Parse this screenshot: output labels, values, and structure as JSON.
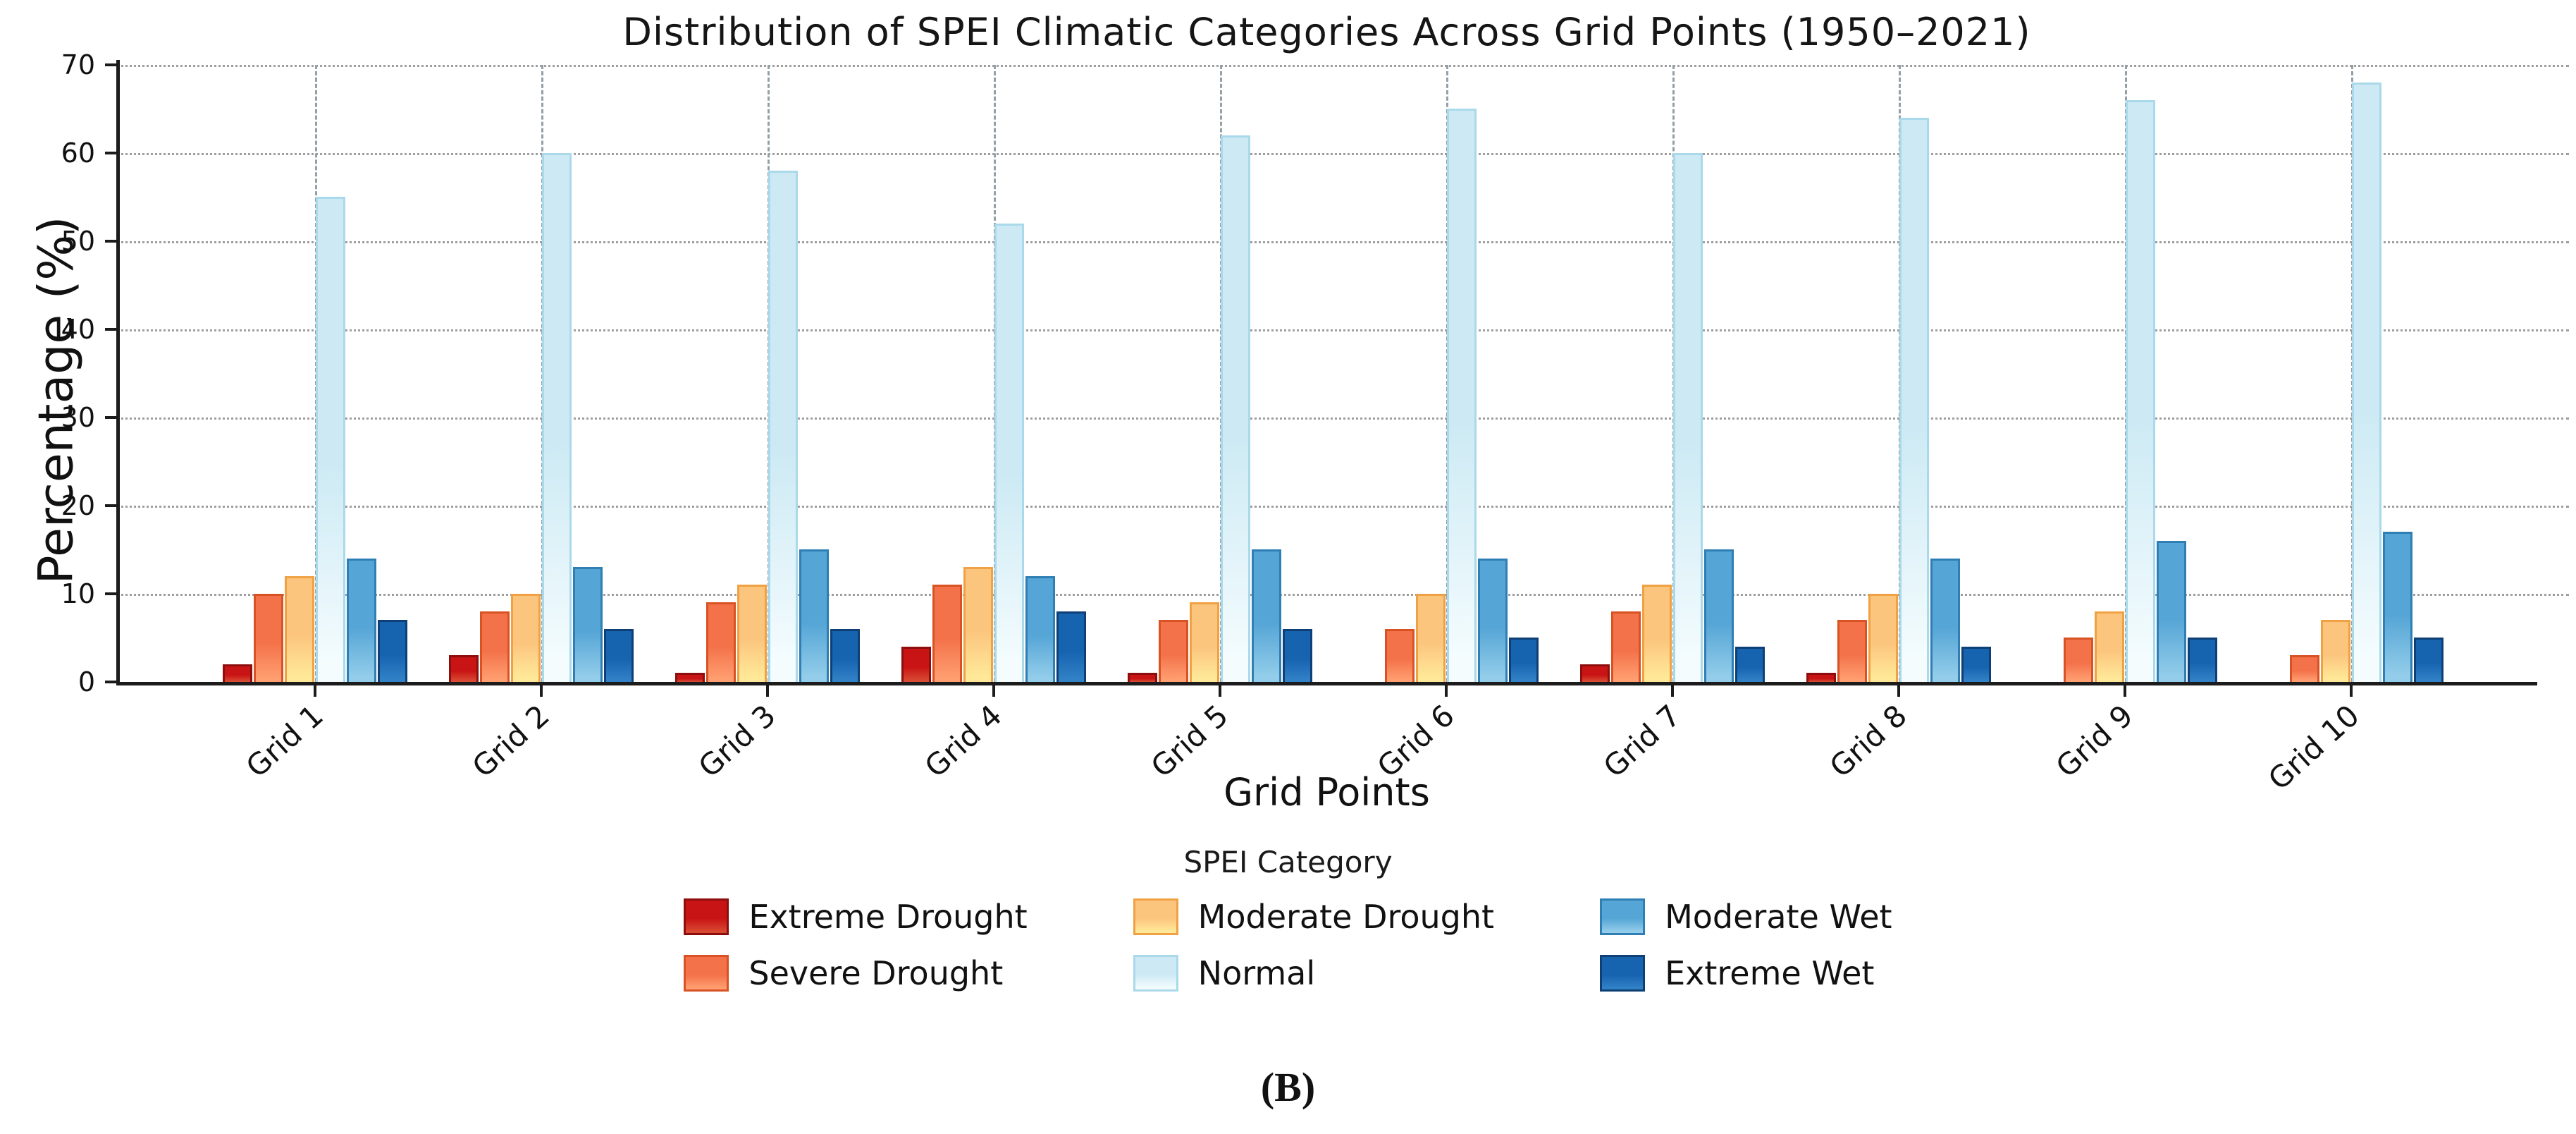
{
  "figure": {
    "caption": "(B)"
  },
  "chart_data": {
    "type": "bar",
    "title": "Distribution of SPEI Climatic Categories Across Grid Points (1950–2021)",
    "xlabel": "Grid Points",
    "ylabel": "Percentage (%)",
    "ylim": [
      0,
      70
    ],
    "yticks": [
      0,
      10,
      20,
      30,
      40,
      50,
      60,
      70
    ],
    "grid": "both",
    "legend_title": "SPEI Category",
    "legend_position": "bottom",
    "categories": [
      "Grid 1",
      "Grid 2",
      "Grid 3",
      "Grid 4",
      "Grid 5",
      "Grid 6",
      "Grid 7",
      "Grid 8",
      "Grid 9",
      "Grid 10"
    ],
    "series": [
      {
        "name": "Extreme Drought",
        "color": "#c81414",
        "edge": "#8e0e0e",
        "light": "#d84a32",
        "values": [
          2,
          3,
          1,
          4,
          1,
          0,
          2,
          1,
          0,
          0
        ]
      },
      {
        "name": "Severe Drought",
        "color": "#f4724a",
        "edge": "#d85224",
        "light": "#ff9e70",
        "values": [
          10,
          8,
          9,
          11,
          7,
          6,
          8,
          7,
          5,
          3
        ]
      },
      {
        "name": "Moderate Drought",
        "color": "#fcc57e",
        "edge": "#f0a143",
        "light": "#ffe999",
        "values": [
          12,
          10,
          11,
          13,
          9,
          10,
          11,
          10,
          8,
          7
        ]
      },
      {
        "name": "Normal",
        "color": "#cdeaf4",
        "edge": "#a9d9ea",
        "light": "#f4fcfe",
        "values": [
          55,
          60,
          58,
          52,
          62,
          65,
          60,
          64,
          66,
          68
        ]
      },
      {
        "name": "Moderate Wet",
        "color": "#55a5d6",
        "edge": "#2f7fb4",
        "light": "#93cdea",
        "values": [
          14,
          13,
          15,
          12,
          15,
          14,
          15,
          14,
          16,
          17
        ]
      },
      {
        "name": "Extreme Wet",
        "color": "#1663b0",
        "edge": "#0e4076",
        "light": "#3181c6",
        "values": [
          7,
          6,
          6,
          8,
          6,
          5,
          4,
          4,
          5,
          5
        ]
      }
    ]
  }
}
